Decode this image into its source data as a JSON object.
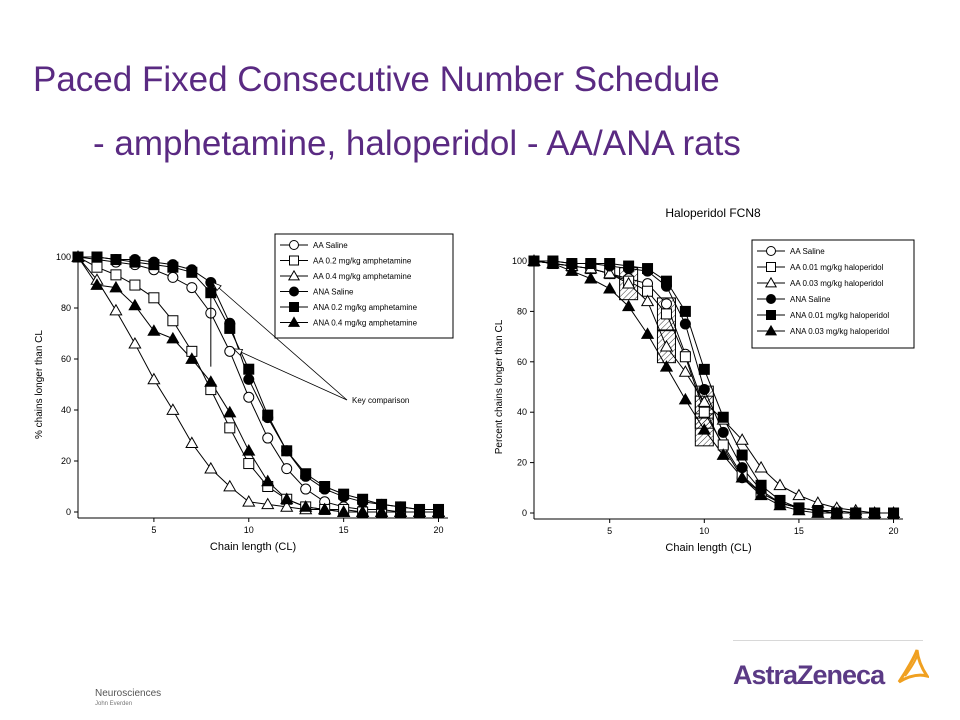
{
  "slide": {
    "title_line1": "Paced Fixed Consecutive Number Schedule",
    "title_line2": "- amphetamine, haloperidol - AA/ANA rats",
    "footer_dept": "Neurosciences",
    "footer_author": "John Everden",
    "logo_text": "AstraZeneca"
  },
  "colors": {
    "title": "#5a2a82",
    "logo": "#5b3a85",
    "logo_mark": "#f0a020"
  },
  "chart_data": [
    {
      "type": "line",
      "title": "",
      "xlabel": "Chain length (CL)",
      "ylabel": "% chains longer than CL",
      "xlim": [
        1,
        20.5
      ],
      "ylim": [
        0,
        100
      ],
      "xticks": [
        5,
        10,
        15,
        20
      ],
      "yticks": [
        0,
        20,
        40,
        60,
        80,
        100
      ],
      "legend_position": "top-right",
      "annotation": "Key comparison",
      "series": [
        {
          "name": "AA Saline",
          "marker": "circle-open",
          "x": [
            1,
            2,
            3,
            4,
            5,
            6,
            7,
            8,
            9,
            10,
            11,
            12,
            13,
            14,
            15,
            16,
            17,
            18,
            19,
            20
          ],
          "y": [
            100,
            99,
            98,
            97,
            95,
            92,
            88,
            78,
            63,
            45,
            29,
            17,
            9,
            4,
            2,
            1,
            1,
            0,
            0,
            0
          ]
        },
        {
          "name": "AA 0.2 mg/kg amphetamine",
          "marker": "square-open",
          "x": [
            1,
            2,
            3,
            4,
            5,
            6,
            7,
            8,
            9,
            10,
            11,
            12,
            13,
            14,
            15,
            16,
            17,
            18,
            19,
            20
          ],
          "y": [
            100,
            96,
            93,
            89,
            84,
            75,
            63,
            48,
            33,
            19,
            10,
            5,
            2,
            1,
            1,
            0,
            0,
            0,
            0,
            0
          ]
        },
        {
          "name": "AA 0.4 mg/kg amphetamine",
          "marker": "triangle-open",
          "x": [
            1,
            2,
            3,
            4,
            5,
            6,
            7,
            8,
            9,
            10,
            11,
            12,
            13,
            14,
            15,
            16,
            17,
            18,
            19,
            20
          ],
          "y": [
            100,
            91,
            79,
            66,
            52,
            40,
            27,
            17,
            10,
            4,
            3,
            2,
            1,
            1,
            0,
            0,
            0,
            0,
            0,
            0
          ]
        },
        {
          "name": "ANA Saline",
          "marker": "circle-filled",
          "x": [
            1,
            2,
            3,
            4,
            5,
            6,
            7,
            8,
            9,
            10,
            11,
            12,
            13,
            14,
            15,
            16,
            17,
            18,
            19,
            20
          ],
          "y": [
            100,
            100,
            99,
            99,
            98,
            97,
            95,
            90,
            74,
            52,
            37,
            24,
            14,
            9,
            6,
            4,
            3,
            2,
            1,
            1
          ]
        },
        {
          "name": "ANA 0.2 mg/kg amphetamine",
          "marker": "square-filled",
          "x": [
            1,
            2,
            3,
            4,
            5,
            6,
            7,
            8,
            9,
            10,
            11,
            12,
            13,
            14,
            15,
            16,
            17,
            18,
            19,
            20
          ],
          "y": [
            100,
            100,
            99,
            98,
            97,
            96,
            94,
            86,
            72,
            56,
            38,
            24,
            15,
            10,
            7,
            5,
            3,
            2,
            1,
            1
          ]
        },
        {
          "name": "ANA 0.4 mg/kg amphetamine",
          "marker": "triangle-filled",
          "x": [
            1,
            2,
            3,
            4,
            5,
            6,
            7,
            8,
            9,
            10,
            11,
            12,
            13,
            14,
            15,
            16,
            17,
            18,
            19,
            20
          ],
          "y": [
            100,
            89,
            88,
            81,
            71,
            68,
            60,
            51,
            39,
            24,
            12,
            5,
            2,
            1,
            0,
            0,
            0,
            0,
            0,
            0
          ]
        }
      ]
    },
    {
      "type": "line",
      "title": "Haloperidol FCN8",
      "xlabel": "Chain length (CL)",
      "ylabel": "Percent chains longer than CL",
      "xlim": [
        1,
        20.5
      ],
      "ylim": [
        0,
        100
      ],
      "xticks": [
        5,
        10,
        15,
        20
      ],
      "yticks": [
        0,
        20,
        40,
        60,
        80,
        100
      ],
      "legend_position": "top-right",
      "series": [
        {
          "name": "AA Saline",
          "marker": "circle-open",
          "x": [
            1,
            2,
            3,
            4,
            5,
            6,
            7,
            8,
            9,
            10,
            11,
            12,
            13,
            14,
            15,
            16,
            17,
            18,
            19,
            20
          ],
          "y": [
            100,
            99,
            98,
            97,
            95,
            93,
            91,
            83,
            63,
            42,
            26,
            14,
            8,
            4,
            2,
            1,
            1,
            0,
            0,
            0
          ]
        },
        {
          "name": "AA 0.01 mg/kg haloperidol",
          "marker": "square-open",
          "x": [
            1,
            2,
            3,
            4,
            5,
            6,
            7,
            8,
            9,
            10,
            11,
            12,
            13,
            14,
            15,
            16,
            17,
            18,
            19,
            20
          ],
          "y": [
            100,
            99,
            98,
            97,
            95,
            92,
            88,
            79,
            62,
            40,
            27,
            15,
            8,
            4,
            2,
            1,
            0,
            0,
            0,
            0
          ]
        },
        {
          "name": "AA 0.03 mg/kg haloperidol",
          "marker": "triangle-open",
          "x": [
            1,
            2,
            3,
            4,
            5,
            6,
            7,
            8,
            9,
            10,
            11,
            12,
            13,
            14,
            15,
            16,
            17,
            18,
            19,
            20
          ],
          "y": [
            100,
            99,
            98,
            97,
            95,
            91,
            84,
            66,
            56,
            44,
            37,
            29,
            18,
            11,
            7,
            4,
            2,
            1,
            0,
            0
          ]
        },
        {
          "name": "ANA Saline",
          "marker": "circle-filled",
          "x": [
            1,
            2,
            3,
            4,
            5,
            6,
            7,
            8,
            9,
            10,
            11,
            12,
            13,
            14,
            15,
            16,
            17,
            18,
            19,
            20
          ],
          "y": [
            100,
            100,
            99,
            99,
            98,
            97,
            96,
            90,
            75,
            49,
            32,
            18,
            9,
            4,
            2,
            1,
            0,
            0,
            0,
            0
          ]
        },
        {
          "name": "ANA 0.01 mg/kg haloperidol",
          "marker": "square-filled",
          "x": [
            1,
            2,
            3,
            4,
            5,
            6,
            7,
            8,
            9,
            10,
            11,
            12,
            13,
            14,
            15,
            16,
            17,
            18,
            19,
            20
          ],
          "y": [
            100,
            100,
            99,
            99,
            99,
            98,
            97,
            92,
            80,
            57,
            38,
            23,
            11,
            5,
            2,
            1,
            0,
            0,
            0,
            0
          ]
        },
        {
          "name": "ANA 0.03 mg/kg haloperidol",
          "marker": "triangle-filled",
          "x": [
            1,
            2,
            3,
            4,
            5,
            6,
            7,
            8,
            9,
            10,
            11,
            12,
            13,
            14,
            15,
            16,
            17,
            18,
            19,
            20
          ],
          "y": [
            100,
            99,
            96,
            93,
            89,
            82,
            71,
            58,
            45,
            33,
            23,
            14,
            7,
            3,
            1,
            0,
            0,
            0,
            0,
            0
          ]
        }
      ],
      "shaded_points": [
        {
          "series": 2,
          "x": 6
        },
        {
          "series": 2,
          "x": 8
        },
        {
          "series": 2,
          "x": 10
        },
        {
          "series": 1,
          "x": 8
        },
        {
          "series": 1,
          "x": 10
        },
        {
          "series": 5,
          "x": 10
        }
      ]
    }
  ]
}
